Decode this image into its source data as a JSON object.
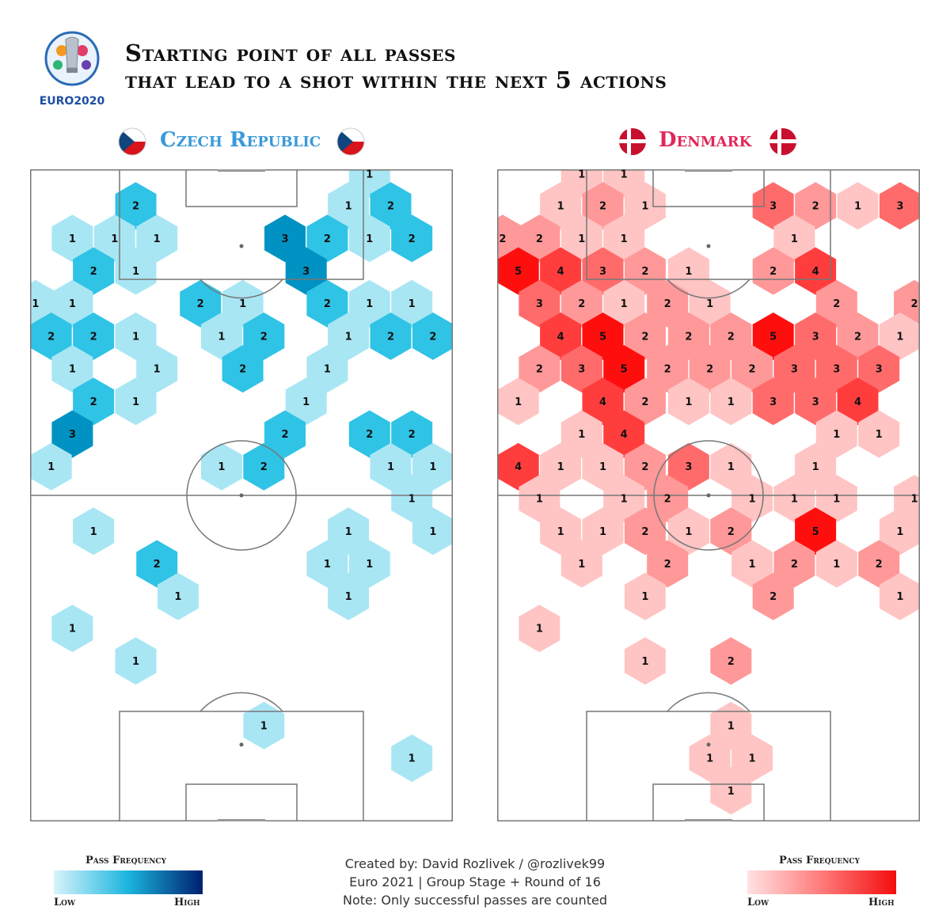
{
  "header": {
    "logo_text": "EURO2020",
    "title_line1": "Starting point of all passes",
    "title_line2": "that lead to a shot within the next 5 actions"
  },
  "footer": {
    "credit_line1": "Created by: David Rozlivek / @rozlivek99",
    "credit_line2": "Euro 2021 | Group Stage + Round of 16",
    "credit_line3": "Note: Only successful passes are counted"
  },
  "chart_data": [
    {
      "type": "heatmap",
      "title": "Czech Republic",
      "legend": {
        "title": "Pass Frequency",
        "low_label": "Low",
        "high_label": "High",
        "colors": [
          "#d8f4fb",
          "#1bb5de",
          "#001f6e"
        ]
      },
      "color": "#3a9ad9",
      "bins": [
        {
          "x": 80.3,
          "y": 99.3,
          "value": 1
        },
        {
          "x": 25.0,
          "y": 94.4,
          "value": 2
        },
        {
          "x": 75.3,
          "y": 94.4,
          "value": 1
        },
        {
          "x": 85.3,
          "y": 94.4,
          "value": 2
        },
        {
          "x": 10.0,
          "y": 89.4,
          "value": 1
        },
        {
          "x": 20.0,
          "y": 89.4,
          "value": 1
        },
        {
          "x": 30.0,
          "y": 89.4,
          "value": 1
        },
        {
          "x": 60.3,
          "y": 89.4,
          "value": 3
        },
        {
          "x": 70.3,
          "y": 89.4,
          "value": 2
        },
        {
          "x": 80.3,
          "y": 89.4,
          "value": 1
        },
        {
          "x": 90.3,
          "y": 89.4,
          "value": 2
        },
        {
          "x": 15.0,
          "y": 84.4,
          "value": 2
        },
        {
          "x": 25.0,
          "y": 84.4,
          "value": 1
        },
        {
          "x": 65.3,
          "y": 84.4,
          "value": 3
        },
        {
          "x": 1.3,
          "y": 79.4,
          "value": 1
        },
        {
          "x": 10.0,
          "y": 79.4,
          "value": 1
        },
        {
          "x": 40.3,
          "y": 79.4,
          "value": 2
        },
        {
          "x": 50.3,
          "y": 79.4,
          "value": 1
        },
        {
          "x": 70.3,
          "y": 79.4,
          "value": 2
        },
        {
          "x": 80.3,
          "y": 79.4,
          "value": 1
        },
        {
          "x": 90.3,
          "y": 79.4,
          "value": 1
        },
        {
          "x": 5.0,
          "y": 74.4,
          "value": 2
        },
        {
          "x": 15.0,
          "y": 74.4,
          "value": 2
        },
        {
          "x": 25.0,
          "y": 74.4,
          "value": 1
        },
        {
          "x": 45.3,
          "y": 74.4,
          "value": 1
        },
        {
          "x": 55.3,
          "y": 74.4,
          "value": 2
        },
        {
          "x": 75.3,
          "y": 74.4,
          "value": 1
        },
        {
          "x": 85.3,
          "y": 74.4,
          "value": 2
        },
        {
          "x": 95.3,
          "y": 74.4,
          "value": 2
        },
        {
          "x": 10.0,
          "y": 69.4,
          "value": 1
        },
        {
          "x": 30.0,
          "y": 69.4,
          "value": 1
        },
        {
          "x": 50.3,
          "y": 69.4,
          "value": 2
        },
        {
          "x": 70.3,
          "y": 69.4,
          "value": 1
        },
        {
          "x": 15.0,
          "y": 64.4,
          "value": 2
        },
        {
          "x": 25.0,
          "y": 64.4,
          "value": 1
        },
        {
          "x": 65.3,
          "y": 64.4,
          "value": 1
        },
        {
          "x": 10.0,
          "y": 59.4,
          "value": 3
        },
        {
          "x": 60.3,
          "y": 59.4,
          "value": 2
        },
        {
          "x": 80.3,
          "y": 59.4,
          "value": 2
        },
        {
          "x": 90.3,
          "y": 59.4,
          "value": 2
        },
        {
          "x": 5.0,
          "y": 54.4,
          "value": 1
        },
        {
          "x": 45.3,
          "y": 54.4,
          "value": 1
        },
        {
          "x": 55.3,
          "y": 54.4,
          "value": 2
        },
        {
          "x": 85.3,
          "y": 54.4,
          "value": 1
        },
        {
          "x": 95.3,
          "y": 54.4,
          "value": 1
        },
        {
          "x": 90.3,
          "y": 49.5,
          "value": 1
        },
        {
          "x": 15.0,
          "y": 44.5,
          "value": 1
        },
        {
          "x": 75.3,
          "y": 44.5,
          "value": 1
        },
        {
          "x": 95.3,
          "y": 44.5,
          "value": 1
        },
        {
          "x": 30.0,
          "y": 39.5,
          "value": 2
        },
        {
          "x": 70.3,
          "y": 39.5,
          "value": 1
        },
        {
          "x": 80.3,
          "y": 39.5,
          "value": 1
        },
        {
          "x": 35.0,
          "y": 34.5,
          "value": 1
        },
        {
          "x": 75.3,
          "y": 34.5,
          "value": 1
        },
        {
          "x": 10.0,
          "y": 29.6,
          "value": 1
        },
        {
          "x": 25.0,
          "y": 24.6,
          "value": 1
        },
        {
          "x": 55.3,
          "y": 14.7,
          "value": 1
        },
        {
          "x": 90.3,
          "y": 9.7,
          "value": 1
        }
      ]
    },
    {
      "type": "heatmap",
      "title": "Denmark",
      "legend": {
        "title": "Pass Frequency",
        "low_label": "Low",
        "high_label": "High",
        "colors": [
          "#ffe2e2",
          "#ff7a7a",
          "#f40d0d"
        ]
      },
      "color": "#e0285a",
      "bins": [
        {
          "x": 20.0,
          "y": 99.3,
          "value": 1
        },
        {
          "x": 30.0,
          "y": 99.3,
          "value": 1
        },
        {
          "x": 15.0,
          "y": 94.4,
          "value": 1
        },
        {
          "x": 25.0,
          "y": 94.4,
          "value": 2
        },
        {
          "x": 35.0,
          "y": 94.4,
          "value": 1
        },
        {
          "x": 65.3,
          "y": 94.4,
          "value": 3
        },
        {
          "x": 75.3,
          "y": 94.4,
          "value": 2
        },
        {
          "x": 85.3,
          "y": 94.4,
          "value": 1
        },
        {
          "x": 95.3,
          "y": 94.4,
          "value": 3
        },
        {
          "x": 1.3,
          "y": 89.4,
          "value": 2
        },
        {
          "x": 10.0,
          "y": 89.4,
          "value": 2
        },
        {
          "x": 20.0,
          "y": 89.4,
          "value": 1
        },
        {
          "x": 30.0,
          "y": 89.4,
          "value": 1
        },
        {
          "x": 70.3,
          "y": 89.4,
          "value": 1
        },
        {
          "x": 5.0,
          "y": 84.4,
          "value": 5
        },
        {
          "x": 15.0,
          "y": 84.4,
          "value": 4
        },
        {
          "x": 25.0,
          "y": 84.4,
          "value": 3
        },
        {
          "x": 35.0,
          "y": 84.4,
          "value": 2
        },
        {
          "x": 45.3,
          "y": 84.4,
          "value": 1
        },
        {
          "x": 65.3,
          "y": 84.4,
          "value": 2
        },
        {
          "x": 75.3,
          "y": 84.4,
          "value": 4
        },
        {
          "x": 10.0,
          "y": 79.4,
          "value": 3
        },
        {
          "x": 20.0,
          "y": 79.4,
          "value": 2
        },
        {
          "x": 30.0,
          "y": 79.4,
          "value": 1
        },
        {
          "x": 40.3,
          "y": 79.4,
          "value": 2
        },
        {
          "x": 50.3,
          "y": 79.4,
          "value": 1
        },
        {
          "x": 80.3,
          "y": 79.4,
          "value": 2
        },
        {
          "x": 98.7,
          "y": 79.4,
          "value": 2
        },
        {
          "x": 15.0,
          "y": 74.4,
          "value": 4
        },
        {
          "x": 25.0,
          "y": 74.4,
          "value": 5
        },
        {
          "x": 35.0,
          "y": 74.4,
          "value": 2
        },
        {
          "x": 45.3,
          "y": 74.4,
          "value": 2
        },
        {
          "x": 55.3,
          "y": 74.4,
          "value": 2
        },
        {
          "x": 65.3,
          "y": 74.4,
          "value": 5
        },
        {
          "x": 75.3,
          "y": 74.4,
          "value": 3
        },
        {
          "x": 85.3,
          "y": 74.4,
          "value": 2
        },
        {
          "x": 95.3,
          "y": 74.4,
          "value": 1
        },
        {
          "x": 10.0,
          "y": 69.4,
          "value": 2
        },
        {
          "x": 20.0,
          "y": 69.4,
          "value": 3
        },
        {
          "x": 30.0,
          "y": 69.4,
          "value": 5
        },
        {
          "x": 40.3,
          "y": 69.4,
          "value": 2
        },
        {
          "x": 50.3,
          "y": 69.4,
          "value": 2
        },
        {
          "x": 60.3,
          "y": 69.4,
          "value": 2
        },
        {
          "x": 70.3,
          "y": 69.4,
          "value": 3
        },
        {
          "x": 80.3,
          "y": 69.4,
          "value": 3
        },
        {
          "x": 90.3,
          "y": 69.4,
          "value": 3
        },
        {
          "x": 5.0,
          "y": 64.4,
          "value": 1
        },
        {
          "x": 25.0,
          "y": 64.4,
          "value": 4
        },
        {
          "x": 35.0,
          "y": 64.4,
          "value": 2
        },
        {
          "x": 45.3,
          "y": 64.4,
          "value": 1
        },
        {
          "x": 55.3,
          "y": 64.4,
          "value": 1
        },
        {
          "x": 65.3,
          "y": 64.4,
          "value": 3
        },
        {
          "x": 75.3,
          "y": 64.4,
          "value": 3
        },
        {
          "x": 85.3,
          "y": 64.4,
          "value": 4
        },
        {
          "x": 20.0,
          "y": 59.4,
          "value": 1
        },
        {
          "x": 30.0,
          "y": 59.4,
          "value": 4
        },
        {
          "x": 80.3,
          "y": 59.4,
          "value": 1
        },
        {
          "x": 90.3,
          "y": 59.4,
          "value": 1
        },
        {
          "x": 5.0,
          "y": 54.4,
          "value": 4
        },
        {
          "x": 15.0,
          "y": 54.4,
          "value": 1
        },
        {
          "x": 25.0,
          "y": 54.4,
          "value": 1
        },
        {
          "x": 35.0,
          "y": 54.4,
          "value": 2
        },
        {
          "x": 45.3,
          "y": 54.4,
          "value": 3
        },
        {
          "x": 55.3,
          "y": 54.4,
          "value": 1
        },
        {
          "x": 75.3,
          "y": 54.4,
          "value": 1
        },
        {
          "x": 10.0,
          "y": 49.5,
          "value": 1
        },
        {
          "x": 30.0,
          "y": 49.5,
          "value": 1
        },
        {
          "x": 40.3,
          "y": 49.5,
          "value": 2
        },
        {
          "x": 60.3,
          "y": 49.5,
          "value": 1
        },
        {
          "x": 70.3,
          "y": 49.5,
          "value": 1
        },
        {
          "x": 80.3,
          "y": 49.5,
          "value": 1
        },
        {
          "x": 98.7,
          "y": 49.5,
          "value": 1
        },
        {
          "x": 15.0,
          "y": 44.5,
          "value": 1
        },
        {
          "x": 25.0,
          "y": 44.5,
          "value": 1
        },
        {
          "x": 35.0,
          "y": 44.5,
          "value": 2
        },
        {
          "x": 45.3,
          "y": 44.5,
          "value": 1
        },
        {
          "x": 55.3,
          "y": 44.5,
          "value": 2
        },
        {
          "x": 75.3,
          "y": 44.5,
          "value": 5
        },
        {
          "x": 95.3,
          "y": 44.5,
          "value": 1
        },
        {
          "x": 20.0,
          "y": 39.5,
          "value": 1
        },
        {
          "x": 40.3,
          "y": 39.5,
          "value": 2
        },
        {
          "x": 60.3,
          "y": 39.5,
          "value": 1
        },
        {
          "x": 70.3,
          "y": 39.5,
          "value": 2
        },
        {
          "x": 80.3,
          "y": 39.5,
          "value": 1
        },
        {
          "x": 90.3,
          "y": 39.5,
          "value": 2
        },
        {
          "x": 35.0,
          "y": 34.5,
          "value": 1
        },
        {
          "x": 65.3,
          "y": 34.5,
          "value": 2
        },
        {
          "x": 95.3,
          "y": 34.5,
          "value": 1
        },
        {
          "x": 10.0,
          "y": 29.6,
          "value": 1
        },
        {
          "x": 35.0,
          "y": 24.6,
          "value": 1
        },
        {
          "x": 55.3,
          "y": 24.6,
          "value": 2
        },
        {
          "x": 55.3,
          "y": 14.7,
          "value": 1
        },
        {
          "x": 50.3,
          "y": 9.7,
          "value": 1
        },
        {
          "x": 60.3,
          "y": 9.7,
          "value": 1
        },
        {
          "x": 55.3,
          "y": 4.7,
          "value": 1
        }
      ]
    }
  ]
}
